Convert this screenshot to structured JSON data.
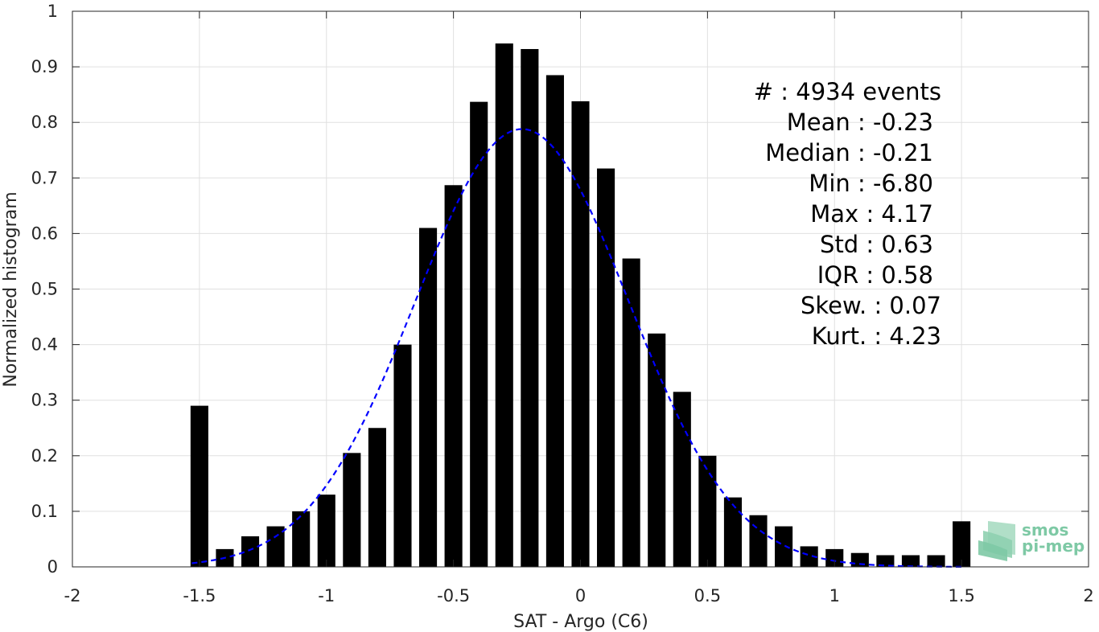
{
  "chart_data": {
    "type": "bar",
    "title": "",
    "xlabel": "SAT - Argo (C6)",
    "ylabel": "Normalized histogram",
    "xlim": [
      -2,
      2
    ],
    "ylim": [
      0,
      1
    ],
    "xticks": [
      "-2",
      "-1.5",
      "-1",
      "-0.5",
      "0",
      "0.5",
      "1",
      "1.5",
      "2"
    ],
    "yticks": [
      "0",
      "0.1",
      "0.2",
      "0.3",
      "0.4",
      "0.5",
      "0.6",
      "0.7",
      "0.8",
      "0.9",
      "1"
    ],
    "grid": true,
    "bar_width": 0.07,
    "bars": {
      "x": [
        -1.5,
        -1.4,
        -1.3,
        -1.2,
        -1.1,
        -1.0,
        -0.9,
        -0.8,
        -0.7,
        -0.6,
        -0.5,
        -0.4,
        -0.3,
        -0.2,
        -0.1,
        0.0,
        0.1,
        0.2,
        0.3,
        0.4,
        0.5,
        0.6,
        0.7,
        0.8,
        0.9,
        1.0,
        1.1,
        1.2,
        1.3,
        1.4,
        1.5
      ],
      "values": [
        0.29,
        0.032,
        0.055,
        0.073,
        0.1,
        0.13,
        0.205,
        0.25,
        0.4,
        0.61,
        0.687,
        0.837,
        0.942,
        0.932,
        0.885,
        0.838,
        0.717,
        0.555,
        0.42,
        0.315,
        0.2,
        0.125,
        0.093,
        0.073,
        0.037,
        0.032,
        0.025,
        0.021,
        0.021,
        0.021,
        0.082
      ],
      "color": "#000000"
    },
    "fit": {
      "type": "gaussian",
      "style": "dashed",
      "color": "#0000ff",
      "peak": 0.788,
      "mean": -0.23,
      "std": 0.42,
      "x_range": [
        -1.53,
        1.5
      ]
    }
  },
  "stats": {
    "events": "#   : 4934 events",
    "mean": "Mean : -0.23",
    "median": "Median : -0.21",
    "min": "Min : -6.80",
    "max": "Max : 4.17",
    "std": "Std : 0.63",
    "iqr": "IQR : 0.58",
    "skew": "Skew. : 0.07",
    "kurt": "Kurt. : 4.23"
  },
  "logo": {
    "line1": "smos",
    "line2": "pi-mep"
  }
}
